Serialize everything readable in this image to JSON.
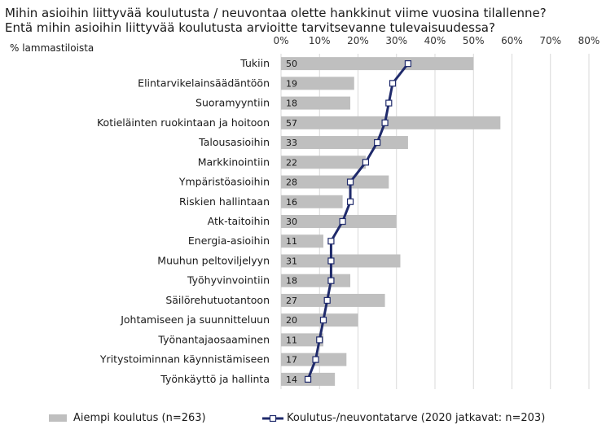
{
  "chart_data": {
    "type": "bar",
    "title": "Mihin asioihin liittyvää koulutusta / neuvontaa olette hankkinut viime vuosina tilallenne?",
    "subtitle": "Entä mihin asioihin liittyvää koulutusta arvioitte tarvitsevanne tulevaisuudessa?",
    "unit_label": "% lammastiloista",
    "orientation": "horizontal",
    "xlim": [
      0,
      80
    ],
    "x_ticks": [
      "0%",
      "10%",
      "20%",
      "30%",
      "40%",
      "50%",
      "60%",
      "70%",
      "80%"
    ],
    "grid": true,
    "legend_position": "bottom",
    "categories": [
      "Tukiin",
      "Elintarvikelainsäädäntöön",
      "Suoramyyntiin",
      "Kotieläinten ruokintaan ja hoitoon",
      "Talousasioihin",
      "Markkinointiin",
      "Ympäristöasioihin",
      "Riskien hallintaan",
      "Atk-taitoihin",
      "Energia-asioihin",
      "Muuhun peltoviljelyyn",
      "Työhyvinvointiin",
      "Säilörehutuotantoon",
      "Johtamiseen ja suunnitteluun",
      "Työnantajaosaaminen",
      "Yritystoiminnan käynnistämiseen",
      "Työnkäyttö ja hallinta"
    ],
    "series": [
      {
        "name": "Aiempi koulutus (n=263)",
        "type": "bar",
        "color": "#bfbfbf",
        "values": [
          50,
          19,
          18,
          57,
          33,
          22,
          28,
          16,
          30,
          11,
          31,
          18,
          27,
          20,
          11,
          17,
          14
        ]
      },
      {
        "name": "Koulutus-/neuvontatarve (2020 jatkavat: n=203)",
        "type": "line",
        "color": "#1f2a6b",
        "values": [
          33,
          29,
          28,
          27,
          25,
          22,
          18,
          18,
          16,
          13,
          13,
          13,
          12,
          11,
          10,
          9,
          7
        ]
      }
    ]
  }
}
